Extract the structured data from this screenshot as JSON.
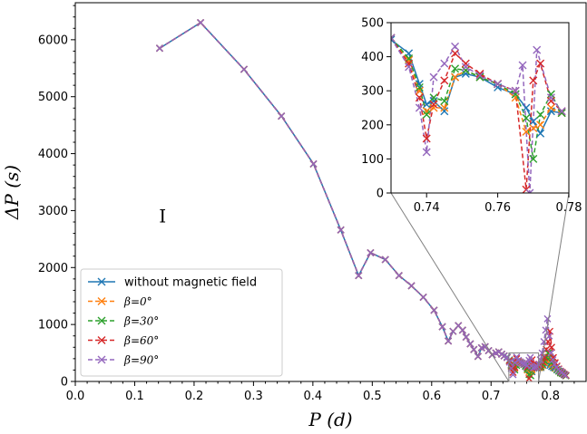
{
  "chart_data": {
    "type": "line",
    "title": "",
    "xlabel": "P (d)",
    "ylabel": "ΔP (s)",
    "xlim": [
      0.0,
      0.86
    ],
    "ylim": [
      0,
      6650
    ],
    "xticks": [
      0.0,
      0.1,
      0.2,
      0.3,
      0.4,
      0.5,
      0.6,
      0.7,
      0.8
    ],
    "xtick_labels": [
      "0.0",
      "0.1",
      "0.2",
      "0.3",
      "0.4",
      "0.5",
      "0.6",
      "0.7",
      "0.8"
    ],
    "yticks": [
      0,
      1000,
      2000,
      3000,
      4000,
      5000,
      6000
    ],
    "ytick_labels": [
      "0",
      "1000",
      "2000",
      "3000",
      "4000",
      "5000",
      "6000"
    ],
    "grid": false,
    "legend_position": "lower-left",
    "annotation": "I",
    "annotation_at": [
      0.147,
      2900
    ],
    "series": [
      {
        "name": "without magnetic field",
        "color": "#1f77b4",
        "dashed": false,
        "x": [
          0.142,
          0.211,
          0.284,
          0.347,
          0.401,
          0.447,
          0.477,
          0.497,
          0.522,
          0.545,
          0.566,
          0.586,
          0.604,
          0.618,
          0.628,
          0.636,
          0.645,
          0.652,
          0.658,
          0.665,
          0.671,
          0.678,
          0.684,
          0.69,
          0.696,
          0.702,
          0.708,
          0.713,
          0.718,
          0.722,
          0.727,
          0.731,
          0.734,
          0.737,
          0.741,
          0.743,
          0.746,
          0.749,
          0.752,
          0.755,
          0.758,
          0.761,
          0.764,
          0.767,
          0.769,
          0.772,
          0.775,
          0.778,
          0.781,
          0.784,
          0.787,
          0.79,
          0.793,
          0.796,
          0.799,
          0.802,
          0.805,
          0.808,
          0.811,
          0.814,
          0.817,
          0.82,
          0.823,
          0.826
        ],
        "y": [
          5850,
          6300,
          5480,
          4660,
          3820,
          2660,
          1860,
          2260,
          2140,
          1860,
          1680,
          1480,
          1250,
          960,
          710,
          880,
          980,
          900,
          780,
          660,
          560,
          440,
          590,
          610,
          540,
          470,
          500,
          520,
          480,
          450,
          430,
          380,
          300,
          250,
          340,
          350,
          330,
          330,
          320,
          300,
          260,
          240,
          200,
          190,
          170,
          230,
          240,
          230,
          250,
          240,
          280,
          320,
          300,
          330,
          280,
          260,
          240,
          230,
          200,
          180,
          160,
          150,
          120,
          100
        ]
      },
      {
        "name": "β=0°",
        "color": "#ff7f0e",
        "dashed": true,
        "x": [
          0.142,
          0.211,
          0.284,
          0.347,
          0.401,
          0.447,
          0.477,
          0.497,
          0.522,
          0.545,
          0.566,
          0.586,
          0.604,
          0.618,
          0.628,
          0.636,
          0.645,
          0.652,
          0.658,
          0.665,
          0.671,
          0.678,
          0.684,
          0.69,
          0.696,
          0.702,
          0.708,
          0.713,
          0.718,
          0.722,
          0.727,
          0.731,
          0.734,
          0.737,
          0.74,
          0.743,
          0.746,
          0.749,
          0.752,
          0.755,
          0.758,
          0.761,
          0.764,
          0.767,
          0.769,
          0.772,
          0.775,
          0.778,
          0.781,
          0.784,
          0.787,
          0.79,
          0.793,
          0.796,
          0.799,
          0.802,
          0.805,
          0.808,
          0.811,
          0.814,
          0.817,
          0.82,
          0.823,
          0.826
        ],
        "y": [
          5850,
          6300,
          5480,
          4660,
          3820,
          2660,
          1860,
          2260,
          2140,
          1860,
          1680,
          1480,
          1250,
          960,
          710,
          880,
          980,
          900,
          780,
          660,
          560,
          440,
          590,
          610,
          540,
          470,
          500,
          520,
          480,
          450,
          420,
          370,
          290,
          250,
          230,
          340,
          350,
          340,
          320,
          300,
          270,
          200,
          170,
          170,
          200,
          250,
          260,
          230,
          240,
          250,
          280,
          330,
          380,
          430,
          370,
          300,
          260,
          230,
          210,
          180,
          150,
          140,
          120,
          100
        ]
      },
      {
        "name": "β=30°",
        "color": "#2ca02c",
        "dashed": true,
        "x": [
          0.142,
          0.211,
          0.284,
          0.347,
          0.401,
          0.447,
          0.477,
          0.497,
          0.522,
          0.545,
          0.566,
          0.586,
          0.604,
          0.618,
          0.628,
          0.636,
          0.645,
          0.652,
          0.658,
          0.665,
          0.671,
          0.678,
          0.684,
          0.69,
          0.696,
          0.702,
          0.708,
          0.713,
          0.718,
          0.722,
          0.727,
          0.731,
          0.734,
          0.737,
          0.74,
          0.743,
          0.746,
          0.749,
          0.752,
          0.755,
          0.758,
          0.761,
          0.764,
          0.767,
          0.769,
          0.772,
          0.775,
          0.778,
          0.781,
          0.784,
          0.787,
          0.79,
          0.793,
          0.796,
          0.799,
          0.802,
          0.805,
          0.808,
          0.811,
          0.814,
          0.817,
          0.82,
          0.823,
          0.826
        ],
        "y": [
          5850,
          6300,
          5480,
          4660,
          3820,
          2660,
          1860,
          2260,
          2140,
          1860,
          1680,
          1480,
          1250,
          960,
          710,
          880,
          980,
          900,
          780,
          660,
          560,
          440,
          590,
          610,
          540,
          470,
          500,
          520,
          480,
          450,
          420,
          360,
          280,
          250,
          200,
          280,
          360,
          340,
          320,
          300,
          270,
          220,
          120,
          100,
          240,
          290,
          270,
          240,
          250,
          260,
          300,
          360,
          420,
          500,
          420,
          330,
          280,
          240,
          210,
          180,
          150,
          140,
          120,
          100
        ]
      },
      {
        "name": "β=60°",
        "color": "#d62728",
        "dashed": true,
        "x": [
          0.142,
          0.211,
          0.284,
          0.347,
          0.401,
          0.447,
          0.477,
          0.497,
          0.522,
          0.545,
          0.566,
          0.586,
          0.604,
          0.618,
          0.628,
          0.636,
          0.645,
          0.652,
          0.658,
          0.665,
          0.671,
          0.678,
          0.684,
          0.69,
          0.696,
          0.702,
          0.708,
          0.713,
          0.718,
          0.722,
          0.727,
          0.731,
          0.734,
          0.737,
          0.74,
          0.743,
          0.746,
          0.749,
          0.752,
          0.755,
          0.758,
          0.761,
          0.764,
          0.767,
          0.769,
          0.772,
          0.775,
          0.778,
          0.781,
          0.784,
          0.787,
          0.79,
          0.793,
          0.796,
          0.799,
          0.802,
          0.805,
          0.808,
          0.811,
          0.814,
          0.817,
          0.82,
          0.823,
          0.826
        ],
        "y": [
          5850,
          6300,
          5480,
          4660,
          3820,
          2660,
          1860,
          2260,
          2140,
          1860,
          1680,
          1480,
          1250,
          960,
          710,
          880,
          980,
          900,
          780,
          660,
          560,
          440,
          590,
          610,
          540,
          470,
          500,
          520,
          480,
          450,
          420,
          360,
          260,
          160,
          250,
          400,
          360,
          340,
          320,
          310,
          300,
          250,
          50,
          330,
          380,
          300,
          250,
          240,
          260,
          290,
          340,
          420,
          560,
          700,
          880,
          600,
          420,
          330,
          270,
          220,
          180,
          160,
          130,
          110
        ]
      },
      {
        "name": "β=90°",
        "color": "#9467bd",
        "dashed": true,
        "x": [
          0.142,
          0.211,
          0.284,
          0.347,
          0.401,
          0.447,
          0.477,
          0.497,
          0.522,
          0.545,
          0.566,
          0.586,
          0.604,
          0.618,
          0.628,
          0.636,
          0.645,
          0.652,
          0.658,
          0.665,
          0.671,
          0.678,
          0.684,
          0.69,
          0.696,
          0.702,
          0.708,
          0.713,
          0.718,
          0.722,
          0.727,
          0.731,
          0.734,
          0.737,
          0.74,
          0.743,
          0.746,
          0.749,
          0.752,
          0.755,
          0.758,
          0.761,
          0.764,
          0.766,
          0.768,
          0.771,
          0.774,
          0.777,
          0.78,
          0.783,
          0.786,
          0.789,
          0.792,
          0.795,
          0.798,
          0.801,
          0.804,
          0.807,
          0.81,
          0.813,
          0.816,
          0.819,
          0.822,
          0.825
        ],
        "y": [
          5850,
          6300,
          5480,
          4660,
          3820,
          2660,
          1860,
          2260,
          2140,
          1860,
          1680,
          1480,
          1250,
          960,
          710,
          880,
          980,
          900,
          780,
          660,
          560,
          440,
          590,
          610,
          540,
          470,
          500,
          520,
          480,
          450,
          420,
          340,
          230,
          120,
          330,
          430,
          370,
          345,
          325,
          310,
          300,
          280,
          370,
          420,
          270,
          240,
          250,
          260,
          300,
          380,
          500,
          700,
          900,
          1100,
          800,
          500,
          380,
          300,
          250,
          210,
          180,
          160,
          130,
          110
        ]
      }
    ],
    "inset": {
      "xlim": [
        0.73,
        0.78
      ],
      "ylim": [
        0,
        500
      ],
      "xticks": [
        0.74,
        0.76,
        0.78
      ],
      "xtick_labels": [
        "0.74",
        "0.76",
        "0.78"
      ],
      "yticks": [
        0,
        100,
        200,
        300,
        400,
        500
      ],
      "ytick_labels": [
        "0",
        "100",
        "200",
        "300",
        "400",
        "500"
      ],
      "series": [
        {
          "name": "without magnetic field",
          "x": [
            0.73,
            0.735,
            0.738,
            0.74,
            0.742,
            0.745,
            0.748,
            0.751,
            0.755,
            0.76,
            0.765,
            0.768,
            0.77,
            0.772,
            0.775,
            0.778
          ],
          "y": [
            450,
            410,
            320,
            260,
            270,
            240,
            340,
            350,
            340,
            310,
            290,
            250,
            210,
            175,
            240,
            235
          ]
        },
        {
          "name": "β=0°",
          "x": [
            0.73,
            0.735,
            0.738,
            0.74,
            0.742,
            0.745,
            0.748,
            0.751,
            0.755,
            0.76,
            0.765,
            0.768,
            0.77,
            0.772,
            0.775,
            0.778
          ],
          "y": [
            455,
            390,
            300,
            240,
            250,
            250,
            340,
            360,
            340,
            320,
            280,
            180,
            190,
            200,
            250,
            235
          ]
        },
        {
          "name": "β=30°",
          "x": [
            0.73,
            0.735,
            0.738,
            0.74,
            0.742,
            0.745,
            0.748,
            0.751,
            0.755,
            0.76,
            0.765,
            0.768,
            0.77,
            0.772,
            0.775,
            0.778
          ],
          "y": [
            455,
            395,
            310,
            230,
            280,
            270,
            365,
            360,
            340,
            320,
            290,
            220,
            100,
            230,
            290,
            235
          ]
        },
        {
          "name": "β=60°",
          "x": [
            0.73,
            0.735,
            0.738,
            0.74,
            0.742,
            0.745,
            0.748,
            0.751,
            0.755,
            0.76,
            0.765,
            0.768,
            0.77,
            0.772,
            0.775,
            0.778
          ],
          "y": [
            455,
            380,
            280,
            160,
            260,
            330,
            410,
            380,
            350,
            320,
            300,
            10,
            330,
            380,
            270,
            240
          ]
        },
        {
          "name": "β=90°",
          "x": [
            0.73,
            0.735,
            0.738,
            0.74,
            0.742,
            0.745,
            0.748,
            0.751,
            0.755,
            0.76,
            0.765,
            0.767,
            0.769,
            0.771,
            0.775,
            0.778
          ],
          "y": [
            455,
            370,
            250,
            120,
            340,
            380,
            430,
            370,
            345,
            320,
            300,
            375,
            0,
            420,
            280,
            240
          ]
        }
      ]
    }
  }
}
